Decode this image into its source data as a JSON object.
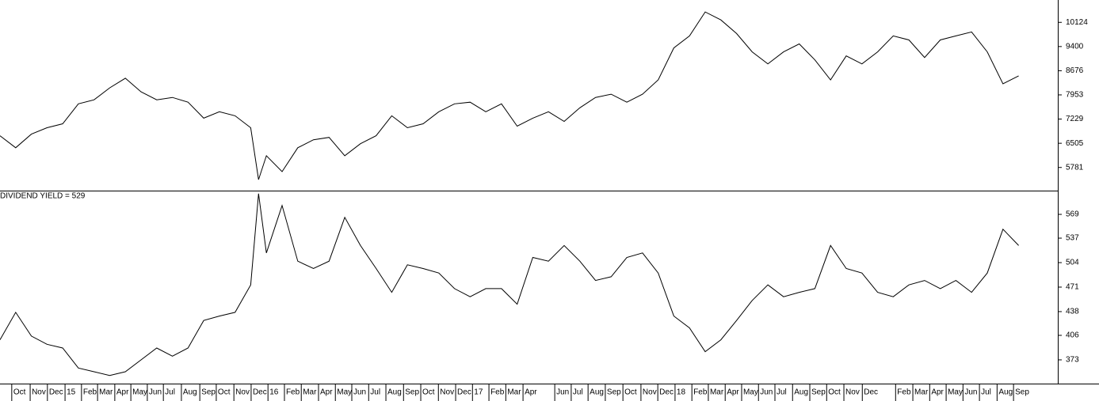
{
  "chart_data": [
    {
      "type": "line",
      "x": [
        0,
        4,
        8,
        12,
        16,
        20,
        24,
        28,
        32,
        36,
        40,
        44,
        48,
        52,
        56,
        60,
        64,
        66,
        68,
        72,
        76,
        80,
        84,
        88,
        92,
        96,
        100,
        104,
        108,
        112,
        116,
        120,
        124,
        128,
        132,
        136,
        140,
        144,
        148,
        152,
        156,
        160,
        164,
        168,
        172,
        176,
        180,
        184,
        188,
        192,
        196,
        200,
        204,
        208,
        212,
        216,
        220,
        224,
        228,
        232,
        236,
        240,
        244,
        248,
        252,
        256,
        260
      ],
      "xlim": [
        0,
        270
      ],
      "series": [
        {
          "color": "#000000",
          "values": [
            6730,
            6370,
            6778,
            6970,
            7089,
            7686,
            7806,
            8164,
            8451,
            8045,
            7806,
            7877,
            7734,
            7256,
            7447,
            7328,
            6970,
            5416,
            6133,
            5655,
            6370,
            6611,
            6682,
            6133,
            6491,
            6730,
            7328,
            6970,
            7089,
            7447,
            7686,
            7734,
            7447,
            7686,
            7017,
            7256,
            7447,
            7160,
            7567,
            7877,
            7973,
            7734,
            7973,
            8403,
            9359,
            9718,
            10435,
            10196,
            9789,
            9240,
            8881,
            9240,
            9479,
            9001,
            8403,
            9120,
            8881,
            9240,
            9718,
            9598,
            9072,
            9598,
            9718,
            9837,
            9240,
            8284,
            8523
          ]
        }
      ],
      "ylim": [
        5088,
        10793
      ],
      "yticks": [
        5781,
        6505,
        7229,
        7953,
        8676,
        9400,
        10124
      ]
    },
    {
      "type": "line",
      "label": "DIVIDEND YIELD = 529",
      "x": [
        0,
        4,
        8,
        12,
        16,
        20,
        24,
        28,
        32,
        36,
        40,
        44,
        48,
        52,
        56,
        60,
        64,
        66,
        68,
        72,
        76,
        80,
        84,
        88,
        92,
        96,
        100,
        104,
        108,
        112,
        116,
        120,
        124,
        128,
        132,
        136,
        140,
        144,
        148,
        152,
        156,
        160,
        164,
        168,
        172,
        176,
        180,
        184,
        188,
        192,
        196,
        200,
        204,
        208,
        212,
        216,
        220,
        224,
        228,
        232,
        236,
        240,
        244,
        248,
        252,
        256,
        260
      ],
      "xlim": [
        0,
        270
      ],
      "series": [
        {
          "color": "#000000",
          "values": [
            400,
            437,
            405,
            394,
            389,
            362,
            357,
            352,
            357,
            373,
            389,
            378,
            389,
            426,
            432,
            437,
            474,
            597,
            517,
            581,
            506,
            496,
            506,
            565,
            527,
            496,
            464,
            501,
            496,
            490,
            469,
            458,
            469,
            469,
            448,
            511,
            506,
            527,
            506,
            480,
            485,
            511,
            517,
            490,
            432,
            416,
            384,
            400,
            426,
            453,
            474,
            458,
            464,
            469,
            527,
            496,
            490,
            464,
            458,
            474,
            480,
            469,
            480,
            464,
            490,
            549,
            527
          ]
        }
      ],
      "ylim": [
        341,
        601
      ],
      "yticks": [
        373,
        406,
        438,
        471,
        504,
        537,
        569
      ],
      "xticks": [
        {
          "value": 3.0,
          "label": "Oct"
        },
        {
          "value": 7.7,
          "label": "Nov"
        },
        {
          "value": 12.1,
          "label": "Dec"
        },
        {
          "value": 16.6,
          "label": "15"
        },
        {
          "value": 20.8,
          "label": "Feb"
        },
        {
          "value": 24.9,
          "label": "Mar"
        },
        {
          "value": 29.3,
          "label": "Apr"
        },
        {
          "value": 33.4,
          "label": "May"
        },
        {
          "value": 37.6,
          "label": "Jun"
        },
        {
          "value": 41.7,
          "label": "Jul"
        },
        {
          "value": 46.3,
          "label": "Aug"
        },
        {
          "value": 51.0,
          "label": "Sep"
        },
        {
          "value": 55.2,
          "label": "Oct"
        },
        {
          "value": 59.7,
          "label": "Nov"
        },
        {
          "value": 64.1,
          "label": "Dec"
        },
        {
          "value": 68.4,
          "label": "16"
        },
        {
          "value": 72.6,
          "label": "Feb"
        },
        {
          "value": 76.9,
          "label": "Mar"
        },
        {
          "value": 81.3,
          "label": "Apr"
        },
        {
          "value": 85.6,
          "label": "May"
        },
        {
          "value": 89.8,
          "label": "Jun"
        },
        {
          "value": 94.1,
          "label": "Jul"
        },
        {
          "value": 98.5,
          "label": "Aug"
        },
        {
          "value": 103.0,
          "label": "Sep"
        },
        {
          "value": 107.4,
          "label": "Oct"
        },
        {
          "value": 111.9,
          "label": "Nov"
        },
        {
          "value": 116.3,
          "label": "Dec"
        },
        {
          "value": 120.6,
          "label": "17"
        },
        {
          "value": 124.8,
          "label": "Feb"
        },
        {
          "value": 129.1,
          "label": "Mar"
        },
        {
          "value": 133.5,
          "label": "Apr"
        },
        {
          "value": 141.6,
          "label": "Jun"
        },
        {
          "value": 145.8,
          "label": "Jul"
        },
        {
          "value": 150.1,
          "label": "Aug"
        },
        {
          "value": 154.5,
          "label": "Sep"
        },
        {
          "value": 159.0,
          "label": "Oct"
        },
        {
          "value": 163.6,
          "label": "Nov"
        },
        {
          "value": 167.9,
          "label": "Dec"
        },
        {
          "value": 172.3,
          "label": "18"
        },
        {
          "value": 176.6,
          "label": "Feb"
        },
        {
          "value": 180.8,
          "label": "Mar"
        },
        {
          "value": 185.1,
          "label": "Apr"
        },
        {
          "value": 189.3,
          "label": "May"
        },
        {
          "value": 193.6,
          "label": "Jun"
        },
        {
          "value": 197.8,
          "label": "Jul"
        },
        {
          "value": 202.3,
          "label": "Aug"
        },
        {
          "value": 206.7,
          "label": "Sep"
        },
        {
          "value": 211.0,
          "label": "Oct"
        },
        {
          "value": 215.4,
          "label": "Nov"
        },
        {
          "value": 220.1,
          "label": "Dec"
        },
        {
          "value": 228.6,
          "label": "Feb"
        },
        {
          "value": 233.0,
          "label": "Mar"
        },
        {
          "value": 237.3,
          "label": "Apr"
        },
        {
          "value": 241.5,
          "label": "May"
        },
        {
          "value": 245.8,
          "label": "Jun"
        },
        {
          "value": 250.0,
          "label": "Jul"
        },
        {
          "value": 254.5,
          "label": "Aug"
        },
        {
          "value": 258.7,
          "label": "Sep"
        }
      ]
    }
  ]
}
